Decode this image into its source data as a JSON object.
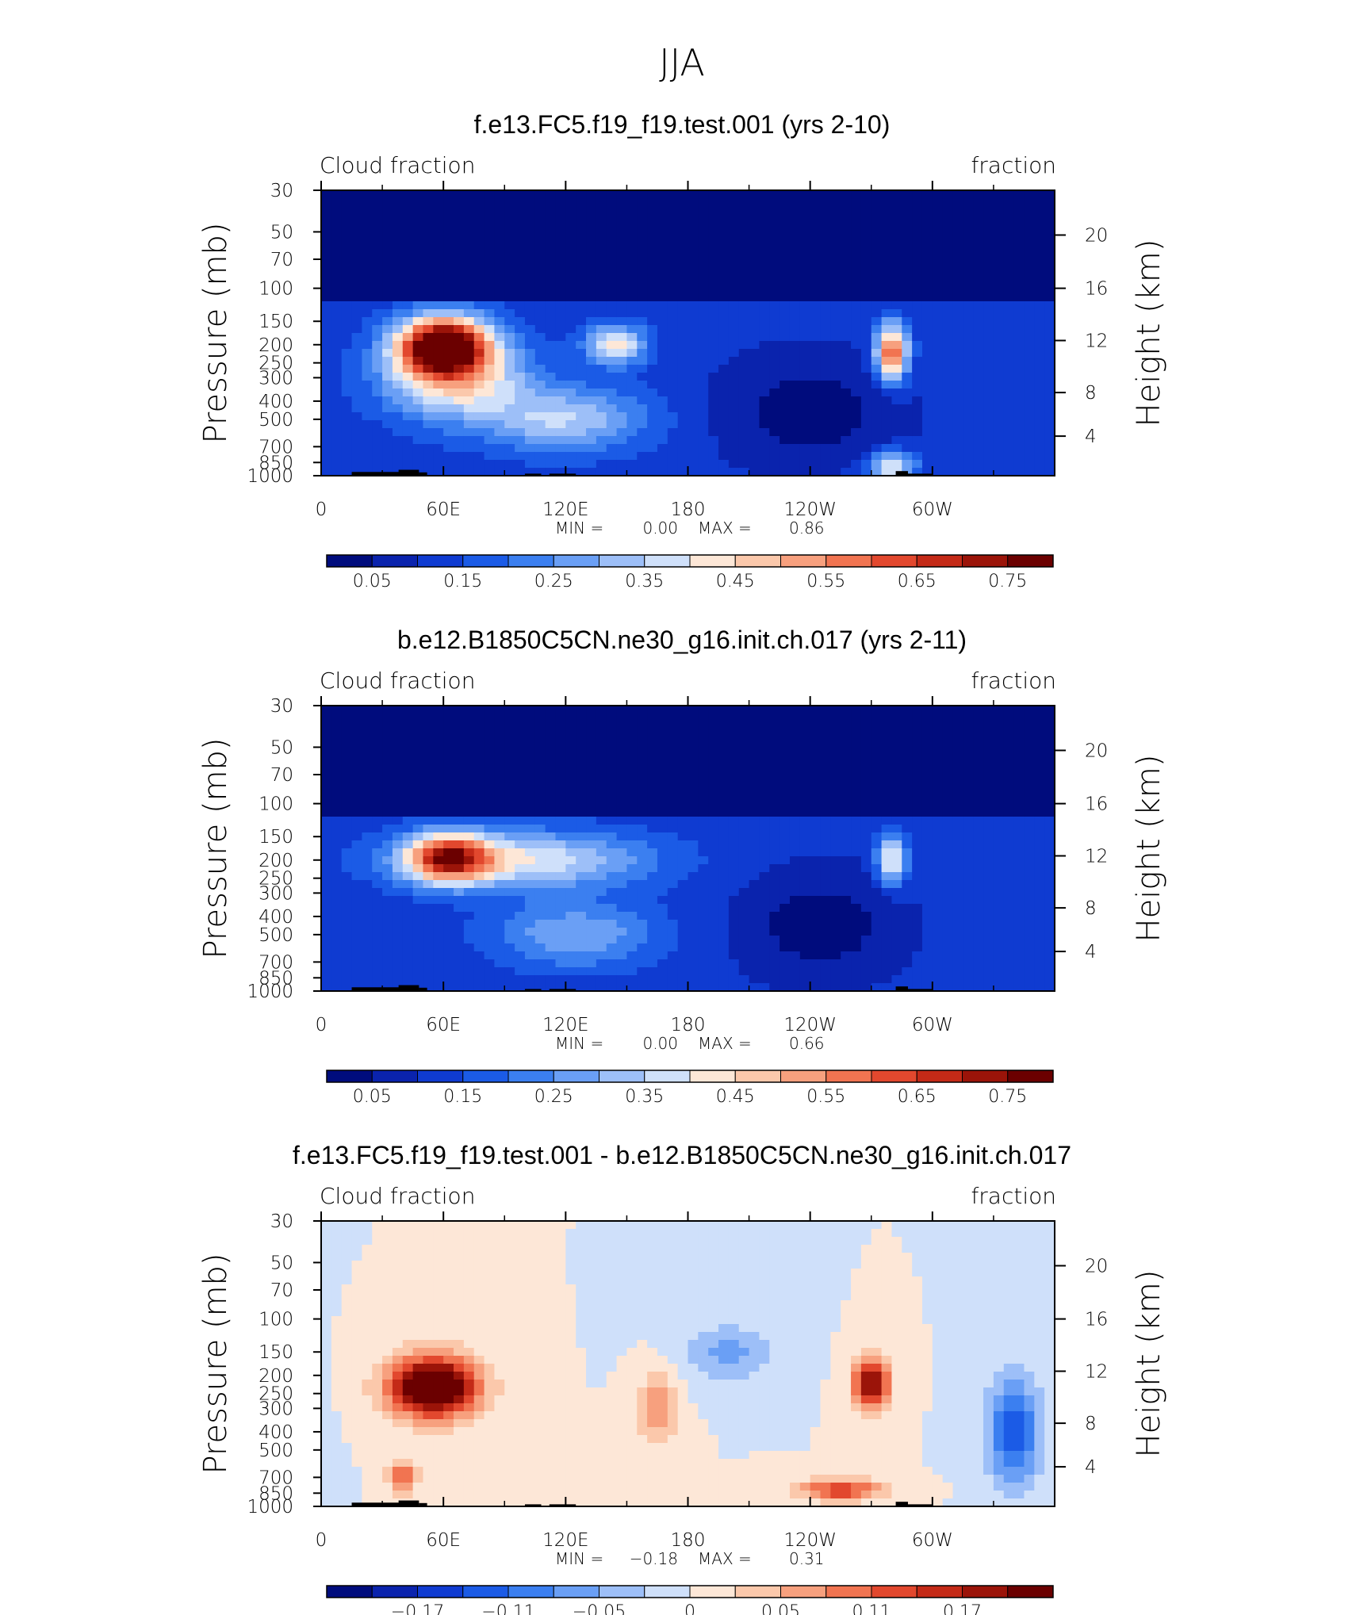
{
  "figure": {
    "title": "JJA"
  },
  "chart_data": [
    {
      "type": "heatmap",
      "title": "f.e13.FC5.f19_f19.test.001 (yrs 2-10)",
      "left_label": "Cloud fraction",
      "right_label": "fraction",
      "ylabel": "Pressure (mb)",
      "ylabel_right": "Height (km)",
      "x_ticks": [
        "0",
        "60E",
        "120E",
        "180",
        "120W",
        "60W"
      ],
      "y_ticks": [
        "30",
        "50",
        "70",
        "100",
        "150",
        "200",
        "250",
        "300",
        "400",
        "500",
        "700",
        "850",
        "1000"
      ],
      "y_right_ticks": [
        "20",
        "16",
        "12",
        "8",
        "4"
      ],
      "ylim": [
        1000,
        30
      ],
      "y_scale": "log",
      "min_label": "MIN =",
      "min_value": "0.00",
      "max_label": "MAX =",
      "max_value": "0.86",
      "colorbar": {
        "labels": [
          "0.05",
          "0.15",
          "0.25",
          "0.35",
          "0.45",
          "0.55",
          "0.65",
          "0.75"
        ],
        "levels": [
          0.05,
          0.1,
          0.15,
          0.2,
          0.25,
          0.3,
          0.35,
          0.4,
          0.45,
          0.5,
          0.55,
          0.6,
          0.65,
          0.7,
          0.75
        ]
      },
      "field": {
        "background": 0.12,
        "features": [
          {
            "lon": 60,
            "p": 200,
            "value": 0.82,
            "rlon": 22,
            "rp": 0.35
          },
          {
            "lon": 65,
            "p": 300,
            "value": 0.45,
            "rlon": 35,
            "rp": 0.5
          },
          {
            "lon": 145,
            "p": 200,
            "value": 0.42,
            "rlon": 15,
            "rp": 0.25
          },
          {
            "lon": 120,
            "p": 500,
            "value": 0.35,
            "rlon": 40,
            "rp": 0.4
          },
          {
            "lon": 280,
            "p": 220,
            "value": 0.62,
            "rlon": 8,
            "rp": 0.35
          },
          {
            "lon": 240,
            "p": 450,
            "value": 0.02,
            "rlon": 45,
            "rp": 0.7
          },
          {
            "lon": 280,
            "p": 900,
            "value": 0.4,
            "rlon": 12,
            "rp": 0.2
          }
        ]
      }
    },
    {
      "type": "heatmap",
      "title": "b.e12.B1850C5CN.ne30_g16.init.ch.017 (yrs 2-11)",
      "left_label": "Cloud fraction",
      "right_label": "fraction",
      "ylabel": "Pressure (mb)",
      "ylabel_right": "Height (km)",
      "x_ticks": [
        "0",
        "60E",
        "120E",
        "180",
        "120W",
        "60W"
      ],
      "y_ticks": [
        "30",
        "50",
        "70",
        "100",
        "150",
        "200",
        "250",
        "300",
        "400",
        "500",
        "700",
        "850",
        "1000"
      ],
      "y_right_ticks": [
        "20",
        "16",
        "12",
        "8",
        "4"
      ],
      "ylim": [
        1000,
        30
      ],
      "y_scale": "log",
      "min_label": "MIN =",
      "min_value": "0.00",
      "max_label": "MAX =",
      "max_value": "0.66",
      "colorbar": {
        "labels": [
          "0.05",
          "0.15",
          "0.25",
          "0.35",
          "0.45",
          "0.55",
          "0.65",
          "0.75"
        ],
        "levels": [
          0.05,
          0.1,
          0.15,
          0.2,
          0.25,
          0.3,
          0.35,
          0.4,
          0.45,
          0.5,
          0.55,
          0.6,
          0.65,
          0.7,
          0.75
        ]
      },
      "field": {
        "background": 0.12,
        "features": [
          {
            "lon": 62,
            "p": 195,
            "value": 0.62,
            "rlon": 20,
            "rp": 0.3
          },
          {
            "lon": 100,
            "p": 200,
            "value": 0.4,
            "rlon": 60,
            "rp": 0.35
          },
          {
            "lon": 125,
            "p": 500,
            "value": 0.3,
            "rlon": 40,
            "rp": 0.4
          },
          {
            "lon": 280,
            "p": 200,
            "value": 0.45,
            "rlon": 7,
            "rp": 0.3
          },
          {
            "lon": 245,
            "p": 450,
            "value": 0.02,
            "rlon": 40,
            "rp": 0.7
          }
        ]
      }
    },
    {
      "type": "heatmap",
      "title": "f.e13.FC5.f19_f19.test.001 - b.e12.B1850C5CN.ne30_g16.init.ch.017",
      "left_label": "Cloud fraction",
      "right_label": "fraction",
      "ylabel": "Pressure (mb)",
      "ylabel_right": "Height (km)",
      "x_ticks": [
        "0",
        "60E",
        "120E",
        "180",
        "120W",
        "60W"
      ],
      "y_ticks": [
        "30",
        "50",
        "70",
        "100",
        "150",
        "200",
        "250",
        "300",
        "400",
        "500",
        "700",
        "850",
        "1000"
      ],
      "y_right_ticks": [
        "20",
        "16",
        "12",
        "8",
        "4"
      ],
      "ylim": [
        1000,
        30
      ],
      "y_scale": "log",
      "min_label": "MIN =",
      "min_value": "−0.18",
      "max_label": "MAX =",
      "max_value": "0.31",
      "colorbar": {
        "labels": [
          "−0.17",
          "−0.11",
          "−0.05",
          "0",
          "0.05",
          "0.11",
          "0.17"
        ],
        "levels": [
          -0.2,
          -0.17,
          -0.14,
          -0.11,
          -0.08,
          -0.05,
          -0.02,
          0,
          0.02,
          0.05,
          0.08,
          0.11,
          0.14,
          0.17,
          0.2
        ]
      },
      "field": {
        "background": 0.0,
        "features": [
          {
            "lon": 55,
            "p": 230,
            "value": 0.31,
            "rlon": 20,
            "rp": 0.35
          },
          {
            "lon": 270,
            "p": 220,
            "value": 0.22,
            "rlon": 8,
            "rp": 0.3
          },
          {
            "lon": 255,
            "p": 820,
            "value": 0.15,
            "rlon": 18,
            "rp": 0.12
          },
          {
            "lon": 40,
            "p": 700,
            "value": 0.12,
            "rlon": 6,
            "rp": 0.2
          },
          {
            "lon": 340,
            "p": 400,
            "value": -0.14,
            "rlon": 12,
            "rp": 0.6
          },
          {
            "lon": 200,
            "p": 150,
            "value": -0.06,
            "rlon": 20,
            "rp": 0.3
          },
          {
            "lon": 165,
            "p": 300,
            "value": 0.08,
            "rlon": 8,
            "rp": 0.4
          }
        ]
      }
    }
  ]
}
